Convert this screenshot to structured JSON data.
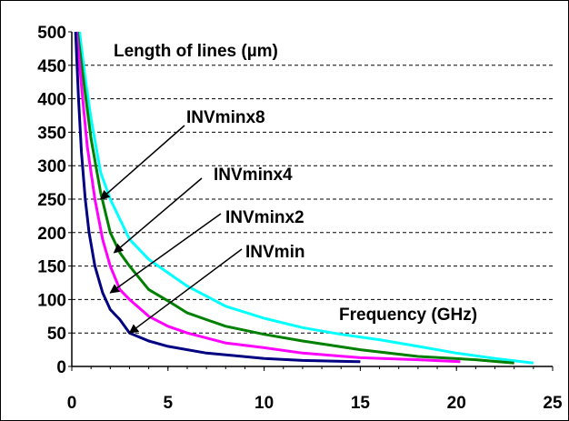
{
  "chart_data": {
    "type": "line",
    "title": "",
    "xlabel": "",
    "ylabel": "",
    "xlim": [
      0,
      25
    ],
    "ylim": [
      0,
      500
    ],
    "x_ticks": [
      "0",
      "5",
      "10",
      "15",
      "20",
      "25"
    ],
    "y_ticks": [
      "0",
      "50",
      "100",
      "150",
      "200",
      "250",
      "300",
      "350",
      "400",
      "450",
      "500"
    ],
    "grid": "horizontal-dashed",
    "annotations": {
      "y_label_text": "Length of lines (µm)",
      "x_label_text": "Frequency (GHz)"
    },
    "series": [
      {
        "name": "INVmin",
        "color": "#000080",
        "arrow_to": [
          3.0,
          50
        ],
        "points": [
          [
            0.2,
            500
          ],
          [
            0.35,
            400
          ],
          [
            0.5,
            320
          ],
          [
            0.7,
            250
          ],
          [
            0.9,
            200
          ],
          [
            1.2,
            150
          ],
          [
            1.6,
            110
          ],
          [
            2.0,
            85
          ],
          [
            2.5,
            70
          ],
          [
            3.0,
            50
          ],
          [
            4.0,
            38
          ],
          [
            5.0,
            30
          ],
          [
            7.0,
            20
          ],
          [
            10.0,
            12
          ],
          [
            12.0,
            9
          ],
          [
            15.0,
            7
          ]
        ]
      },
      {
        "name": "INVminx2",
        "color": "#FF00FF",
        "arrow_to": [
          2.0,
          110
        ],
        "points": [
          [
            0.25,
            500
          ],
          [
            0.5,
            420
          ],
          [
            0.8,
            330
          ],
          [
            1.2,
            250
          ],
          [
            1.6,
            190
          ],
          [
            2.0,
            150
          ],
          [
            2.5,
            115
          ],
          [
            3.0,
            100
          ],
          [
            4.0,
            75
          ],
          [
            5.0,
            60
          ],
          [
            6.0,
            50
          ],
          [
            8.0,
            35
          ],
          [
            10.0,
            28
          ],
          [
            12.0,
            20
          ],
          [
            15.0,
            13
          ],
          [
            18.0,
            10
          ],
          [
            20.2,
            7
          ]
        ]
      },
      {
        "name": "INVminx4",
        "color": "#008000",
        "arrow_to": [
          2.2,
          170
        ],
        "points": [
          [
            0.3,
            500
          ],
          [
            0.6,
            430
          ],
          [
            1.0,
            340
          ],
          [
            1.5,
            260
          ],
          [
            2.0,
            200
          ],
          [
            2.5,
            170
          ],
          [
            3.0,
            150
          ],
          [
            4.0,
            115
          ],
          [
            5.0,
            98
          ],
          [
            6.0,
            80
          ],
          [
            7.0,
            70
          ],
          [
            8.0,
            60
          ],
          [
            10.0,
            48
          ],
          [
            12.0,
            38
          ],
          [
            15.0,
            25
          ],
          [
            18.0,
            15
          ],
          [
            21.0,
            10
          ],
          [
            23.0,
            5
          ]
        ]
      },
      {
        "name": "INVminx8",
        "color": "#00FFFF",
        "arrow_to": [
          1.5,
          250
        ],
        "points": [
          [
            0.4,
            500
          ],
          [
            0.7,
            430
          ],
          [
            1.0,
            370
          ],
          [
            1.5,
            290
          ],
          [
            2.0,
            250
          ],
          [
            2.5,
            220
          ],
          [
            3.0,
            190
          ],
          [
            4.0,
            160
          ],
          [
            5.0,
            140
          ],
          [
            6.0,
            120
          ],
          [
            7.0,
            105
          ],
          [
            8.0,
            90
          ],
          [
            10.0,
            72
          ],
          [
            12.0,
            58
          ],
          [
            14.0,
            48
          ],
          [
            16.0,
            40
          ],
          [
            18.0,
            30
          ],
          [
            20.0,
            20
          ],
          [
            22.0,
            12
          ],
          [
            24.0,
            5
          ]
        ]
      }
    ]
  }
}
